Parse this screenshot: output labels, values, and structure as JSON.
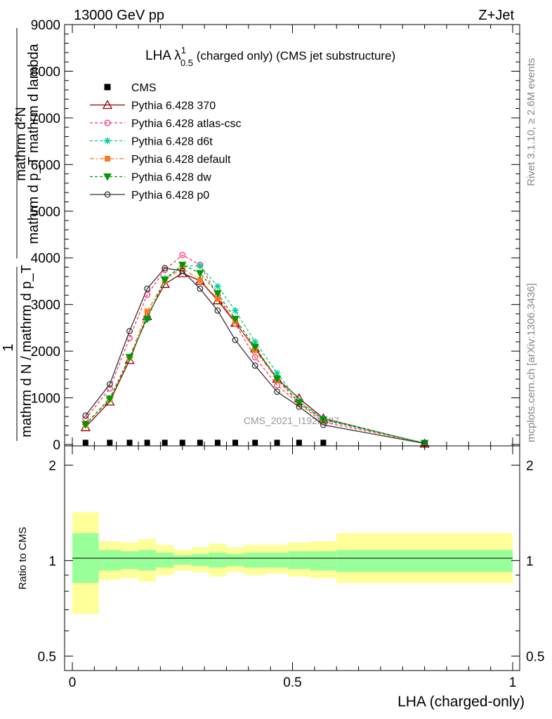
{
  "header": {
    "left": "13000 GeV pp",
    "right": "Z+Jet"
  },
  "side_text": {
    "rivet": "Rivet 3.1.10, ≥ 2.6M events",
    "mcplots": "mcplots.cern.ch [arXiv:1306.3436]"
  },
  "watermark": "CMS_2021_I1920187",
  "chart_data": [
    {
      "type": "line",
      "title_main": "LHA λ",
      "title_sup": "1",
      "title_sub": "0.5",
      "title_rest": " (charged only) (CMS jet substructure)",
      "ylabel_top": "mathrm d²N",
      "ylabel_bottom_line1": "mathrm d p_T mathrm d lambda",
      "ylabel_bottom_line2": "mathrm d N / mathrm d p_T",
      "ylabel_fraction_num": "1",
      "ylim": [
        0,
        9000
      ],
      "yticks": [
        0,
        1000,
        2000,
        3000,
        4000,
        5000,
        6000,
        7000,
        8000,
        9000
      ],
      "ytick_labels": [
        "0",
        "1000",
        "2000",
        "3000",
        "4000",
        "5000",
        "6000",
        "7000",
        "8000",
        "9000"
      ],
      "xlim": [
        0,
        1
      ],
      "x": [
        0.03,
        0.085,
        0.13,
        0.17,
        0.21,
        0.25,
        0.29,
        0.33,
        0.37,
        0.415,
        0.465,
        0.515,
        0.57,
        0.8
      ],
      "cms": {
        "name": "CMS",
        "color": "#000000",
        "x": [
          0.03,
          0.085,
          0.13,
          0.17,
          0.21,
          0.25,
          0.29,
          0.33,
          0.37,
          0.415,
          0.465,
          0.515,
          0.57
        ],
        "y": [
          10,
          10,
          10,
          10,
          10,
          10,
          10,
          10,
          10,
          10,
          10,
          10,
          10
        ]
      },
      "series": [
        {
          "name": "Pythia 6.428 370",
          "color": "#8b0000",
          "dash": "",
          "marker": "triangle-open",
          "y": [
            370,
            920,
            1810,
            2750,
            3440,
            3670,
            3510,
            3090,
            2610,
            2060,
            1410,
            990,
            560,
            20
          ]
        },
        {
          "name": "Pythia 6.428 atlas-csc",
          "color": "#ff3366",
          "dash": "4,3",
          "marker": "circle-open",
          "y": [
            550,
            1200,
            2280,
            3210,
            3740,
            4060,
            3850,
            3200,
            2590,
            1870,
            1270,
            870,
            480,
            30
          ]
        },
        {
          "name": "Pythia 6.428 d6t",
          "color": "#00cc99",
          "dash": "4,3",
          "marker": "star",
          "y": [
            430,
            990,
            1870,
            2690,
            3560,
            3820,
            3830,
            3390,
            2870,
            2200,
            1530,
            930,
            550,
            30
          ]
        },
        {
          "name": "Pythia 6.428 default",
          "color": "#ff7722",
          "dash": "6,3,2,3",
          "marker": "square",
          "y": [
            420,
            970,
            1860,
            2850,
            3510,
            3790,
            3520,
            3120,
            2640,
            2020,
            1390,
            880,
            530,
            20
          ]
        },
        {
          "name": "Pythia 6.428 dw",
          "color": "#009900",
          "dash": "4,3",
          "marker": "triangle-down",
          "y": [
            430,
            980,
            1870,
            2690,
            3530,
            3850,
            3670,
            3240,
            2690,
            2090,
            1410,
            900,
            530,
            30
          ]
        },
        {
          "name": "Pythia 6.428 p0",
          "color": "#333333",
          "dash": "",
          "marker": "circle-open",
          "y": [
            620,
            1290,
            2430,
            3340,
            3780,
            3720,
            3340,
            2870,
            2240,
            1690,
            1130,
            810,
            420,
            20
          ]
        }
      ]
    },
    {
      "type": "area",
      "ylabel": "Ratio to CMS",
      "xlabel": "LHA (charged-only)",
      "xlim": [
        0,
        1
      ],
      "xticks": [
        0,
        0.5,
        1
      ],
      "xtick_labels": [
        "0",
        "0.5",
        "1"
      ],
      "yscale": "log",
      "ylim": [
        0.45,
        2.3
      ],
      "yticks": [
        0.5,
        1,
        2
      ],
      "ytick_labels": [
        "0.5",
        "1",
        "2"
      ],
      "reference": 1,
      "bin_edges": [
        0,
        0.06,
        0.11,
        0.15,
        0.19,
        0.23,
        0.27,
        0.31,
        0.35,
        0.39,
        0.44,
        0.49,
        0.54,
        0.6,
        1.0
      ],
      "inner_band_color": "#99ff99",
      "outer_band_color": "#ffff99",
      "inner_lo": [
        0.85,
        0.93,
        0.94,
        0.93,
        0.95,
        0.97,
        0.96,
        0.95,
        0.96,
        0.95,
        0.95,
        0.94,
        0.93,
        0.92
      ],
      "inner_hi": [
        1.22,
        1.08,
        1.07,
        1.08,
        1.06,
        1.04,
        1.05,
        1.06,
        1.05,
        1.06,
        1.06,
        1.07,
        1.07,
        1.08
      ],
      "outer_lo": [
        0.68,
        0.87,
        0.88,
        0.86,
        0.9,
        0.93,
        0.92,
        0.89,
        0.92,
        0.9,
        0.91,
        0.89,
        0.88,
        0.85
      ],
      "outer_hi": [
        1.42,
        1.15,
        1.14,
        1.17,
        1.12,
        1.08,
        1.1,
        1.13,
        1.1,
        1.12,
        1.12,
        1.14,
        1.15,
        1.22
      ]
    }
  ]
}
